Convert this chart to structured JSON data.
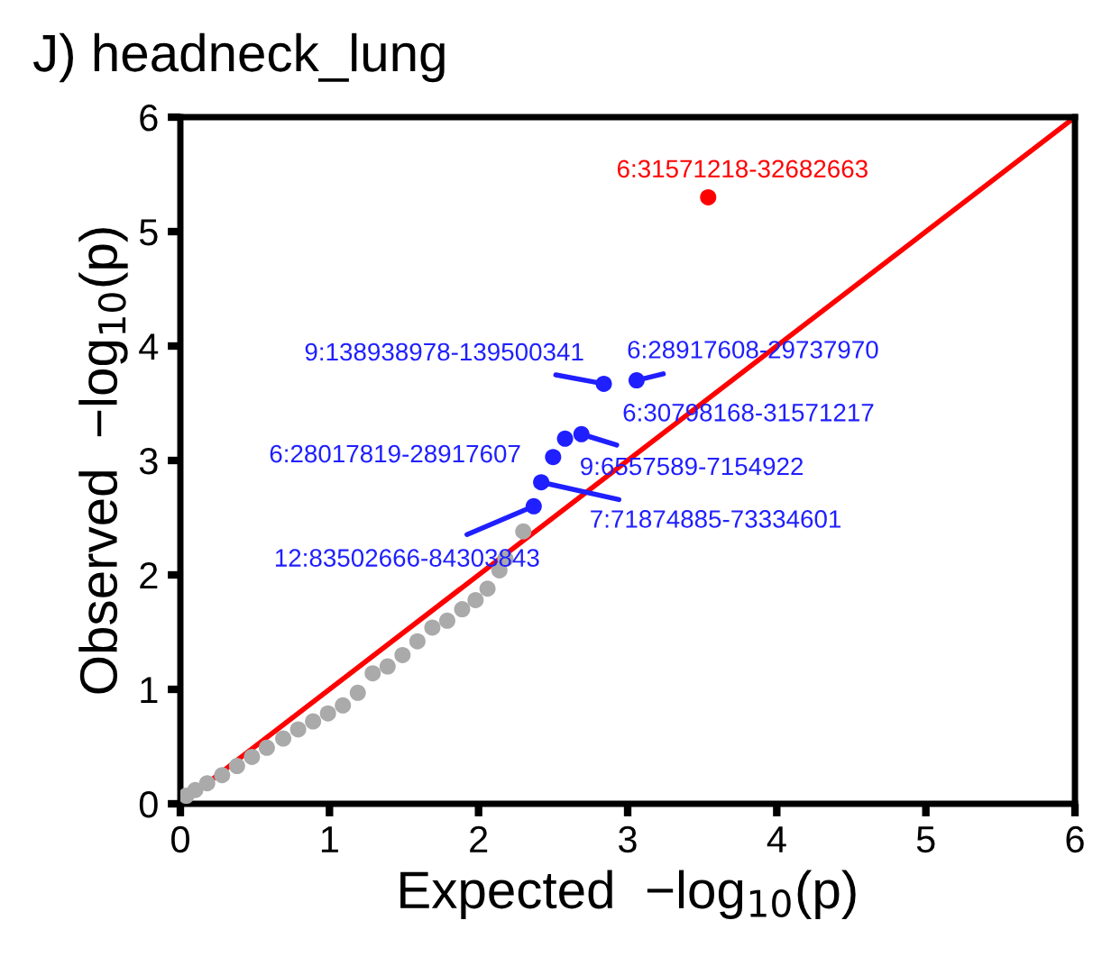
{
  "chart_data": {
    "type": "scatter",
    "title": "J) headneck_lung",
    "xlabel": "Expected  −log$_{10}$(p)",
    "ylabel": "Observed  −log$_{10}$(p)",
    "xlim": [
      0,
      6
    ],
    "ylim": [
      0,
      6
    ],
    "xticks": [
      0,
      1,
      2,
      3,
      4,
      5,
      6
    ],
    "yticks": [
      0,
      1,
      2,
      3,
      4,
      5,
      6
    ],
    "grid": false,
    "series": [
      {
        "color": "#aaaaaa",
        "marker": "circle",
        "x": [
          0.04,
          0.1,
          0.18,
          0.28,
          0.38,
          0.48,
          0.58,
          0.69,
          0.79,
          0.89,
          0.99,
          1.09,
          1.19,
          1.29,
          1.39,
          1.49,
          1.59,
          1.69,
          1.79,
          1.89,
          1.98,
          2.06,
          2.14,
          2.18,
          2.3
        ],
        "values": [
          0.07,
          0.12,
          0.18,
          0.25,
          0.33,
          0.41,
          0.49,
          0.57,
          0.65,
          0.72,
          0.79,
          0.86,
          0.97,
          1.14,
          1.2,
          1.3,
          1.42,
          1.54,
          1.6,
          1.7,
          1.78,
          1.88,
          2.04,
          2.14,
          2.38
        ]
      },
      {
        "color": "#1f1fff",
        "marker": "circle",
        "x": [
          2.84,
          3.06,
          2.58,
          2.69,
          2.5,
          2.42,
          2.37
        ],
        "values": [
          3.67,
          3.7,
          3.19,
          3.23,
          3.03,
          2.81,
          2.6
        ]
      },
      {
        "color": "#ff0000",
        "marker": "circle",
        "x": [
          3.54
        ],
        "values": [
          5.3
        ]
      },
      {
        "type": "line",
        "marker": "none",
        "color": "#ff0000",
        "x": [
          0,
          6
        ],
        "values": [
          0,
          6
        ]
      }
    ],
    "annotations": [
      {
        "text": "6:31571218-32682663",
        "x": 3.54,
        "y": 5.3
      },
      {
        "text": "9:138938978-139500341",
        "x": 2.84,
        "y": 3.67
      },
      {
        "text": "6:28917608-29737970",
        "x": 3.06,
        "y": 3.7
      },
      {
        "text": "6:30798168-31571217",
        "x": 2.58,
        "y": 3.19
      },
      {
        "text": "9:6557589-7154922",
        "x": 2.69,
        "y": 3.23
      },
      {
        "text": "6:28017819-28917607",
        "x": 2.5,
        "y": 3.03
      },
      {
        "text": "7:71874885-73334601",
        "x": 2.42,
        "y": 2.81
      },
      {
        "text": "12:83502666-84303843",
        "x": 2.37,
        "y": 2.6
      }
    ]
  }
}
